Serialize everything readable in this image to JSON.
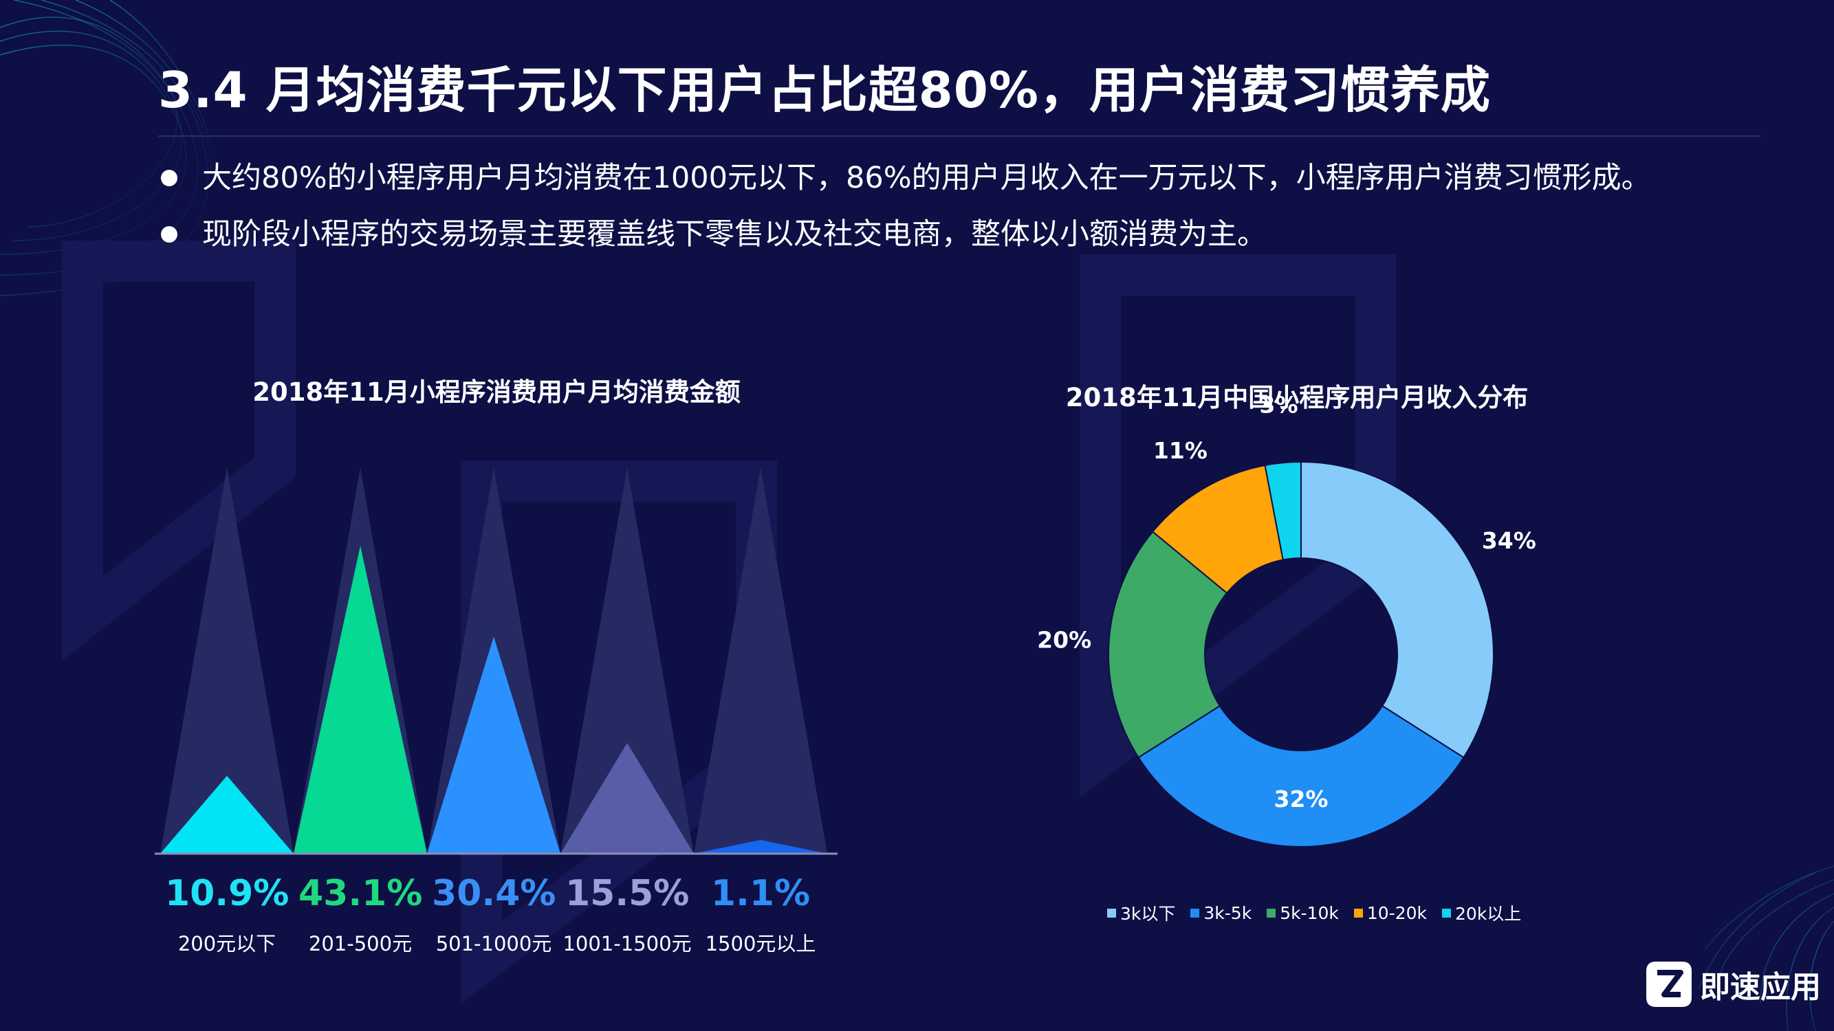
{
  "slide": {
    "title": "3.4 月均消费千元以下用户占比超80%，用户消费习惯养成",
    "bullets": [
      "大约80%的小程序用户月均消费在1000元以下，86%的用户月收入在一万元以下，小程序用户消费习惯形成。",
      "现阶段小程序的交易场景主要覆盖线下零售以及社交电商，整体以小额消费为主。"
    ],
    "logo_text": "即速应用"
  },
  "colors": {
    "background": "#0d0f45",
    "triangle_bg": "#262a62",
    "watermark": "#161a55"
  },
  "chart_data": [
    {
      "type": "bar",
      "title": "2018年11月小程序消费用户月均消费金额",
      "categories": [
        "200元以下",
        "201-500元",
        "501-1000元",
        "1001-1500元",
        "1500元以上"
      ],
      "values": [
        10.9,
        43.1,
        30.4,
        15.5,
        1.1
      ],
      "value_labels": [
        "10.9%",
        "43.1%",
        "30.4%",
        "15.5%",
        "1.1%"
      ],
      "colors": [
        "#00e4f5",
        "#05d993",
        "#2a91ff",
        "#585da8",
        "#1766ee"
      ],
      "label_colors": [
        "#1ee3f5",
        "#1ed97f",
        "#3a8ff5",
        "#9aa0d8",
        "#2f8ff5"
      ],
      "ylim": [
        0,
        50
      ],
      "grid": false
    },
    {
      "type": "pie",
      "title": "2018年11月中国小程序用户月收入分布",
      "categories": [
        "3k以下",
        "3k-5k",
        "5k-10k",
        "10-20k",
        "20k以上"
      ],
      "values": [
        34,
        32,
        20,
        11,
        3
      ],
      "value_labels": [
        "34%",
        "32%",
        "20%",
        "11%",
        "3%"
      ],
      "colors": [
        "#87cbfb",
        "#1f8ef5",
        "#3daa68",
        "#ffa50a",
        "#10d4ee"
      ],
      "legend_position": "bottom"
    }
  ]
}
